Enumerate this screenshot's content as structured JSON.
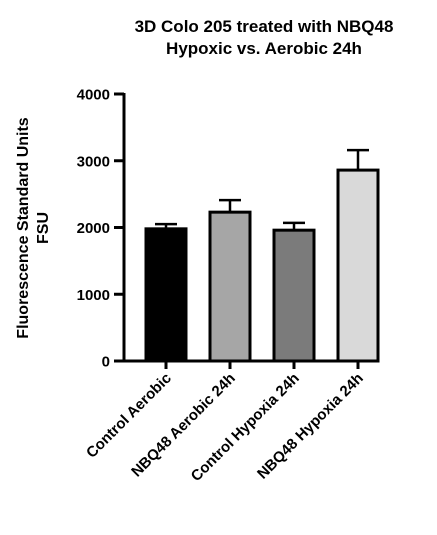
{
  "chart_data": {
    "type": "bar",
    "title_lines": [
      "3D Colo 205 treated with NBQ48",
      "Hypoxic vs. Aerobic  24h"
    ],
    "ylabel_lines": [
      "Fluorescence Standard Units",
      "FSU"
    ],
    "xlabel": "",
    "ylim": [
      0,
      4000
    ],
    "yticks": [
      "0",
      "1000",
      "2000",
      "3000",
      "4000"
    ],
    "categories": [
      "Control Aerobic",
      "NBQ48 Aerobic 24h",
      "Control Hypoxia 24h",
      "NBQ48 Hypoxia 24h"
    ],
    "values": [
      1980,
      2230,
      1960,
      2860
    ],
    "errors": [
      70,
      180,
      110,
      300
    ],
    "colors": [
      "#000000",
      "#a6a6a6",
      "#7b7b7b",
      "#d9d9d9"
    ],
    "grid": false,
    "error_bars": "upper"
  }
}
